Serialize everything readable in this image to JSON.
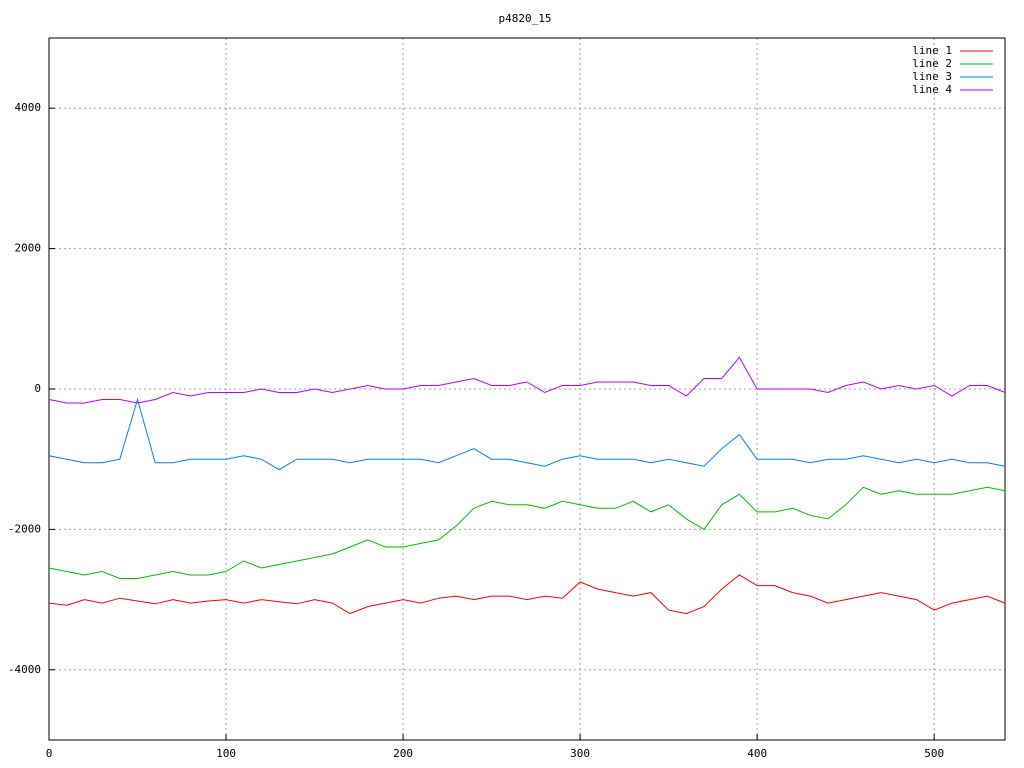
{
  "chart_data": {
    "type": "line",
    "title": "p4820_15",
    "x": [
      0,
      10,
      20,
      30,
      40,
      50,
      60,
      70,
      80,
      90,
      100,
      110,
      120,
      130,
      140,
      150,
      160,
      170,
      180,
      190,
      200,
      210,
      220,
      230,
      240,
      250,
      260,
      270,
      280,
      290,
      300,
      310,
      320,
      330,
      340,
      350,
      360,
      370,
      380,
      390,
      400,
      410,
      420,
      430,
      440,
      450,
      460,
      470,
      480,
      490,
      500,
      510,
      520,
      530,
      540
    ],
    "series": [
      {
        "name": "line 1",
        "color": "#ff0000",
        "values": [
          -3050,
          -3080,
          -3000,
          -3050,
          -2980,
          -3020,
          -3060,
          -3000,
          -3050,
          -3020,
          -3000,
          -3050,
          -3000,
          -3030,
          -3060,
          -3000,
          -3050,
          -3200,
          -3100,
          -3050,
          -3000,
          -3050,
          -2980,
          -2950,
          -3000,
          -2950,
          -2950,
          -3000,
          -2950,
          -2980,
          -2750,
          -2850,
          -2900,
          -2950,
          -2900,
          -3150,
          -3200,
          -3100,
          -2850,
          -2650,
          -2800,
          -2800,
          -2900,
          -2950,
          -3050,
          -3000,
          -2950,
          -2900,
          -2950,
          -3000,
          -3150,
          -3050,
          -3000,
          -2950,
          -3050
        ]
      },
      {
        "name": "line 2",
        "color": "#00c000",
        "values": [
          -2550,
          -2600,
          -2650,
          -2600,
          -2700,
          -2700,
          -2650,
          -2600,
          -2650,
          -2650,
          -2600,
          -2450,
          -2550,
          -2500,
          -2450,
          -2400,
          -2350,
          -2250,
          -2150,
          -2250,
          -2250,
          -2200,
          -2150,
          -1950,
          -1700,
          -1600,
          -1650,
          -1650,
          -1700,
          -1600,
          -1650,
          -1700,
          -1700,
          -1600,
          -1750,
          -1650,
          -1850,
          -2000,
          -1650,
          -1500,
          -1750,
          -1750,
          -1700,
          -1800,
          -1850,
          -1650,
          -1400,
          -1500,
          -1450,
          -1500,
          -1500,
          -1500,
          -1450,
          -1400,
          -1450
        ]
      },
      {
        "name": "line 3",
        "color": "#0080ff",
        "values": [
          -950,
          -1000,
          -1050,
          -1050,
          -1000,
          -150,
          -1050,
          -1050,
          -1000,
          -1000,
          -1000,
          -950,
          -1000,
          -1150,
          -1000,
          -1000,
          -1000,
          -1050,
          -1000,
          -1000,
          -1000,
          -1000,
          -1050,
          -950,
          -850,
          -1000,
          -1000,
          -1050,
          -1100,
          -1000,
          -950,
          -1000,
          -1000,
          -1000,
          -1050,
          -1000,
          -1050,
          -1100,
          -850,
          -650,
          -1000,
          -1000,
          -1000,
          -1050,
          -1000,
          -1000,
          -950,
          -1000,
          -1050,
          -1000,
          -1050,
          -1000,
          -1050,
          -1050,
          -1100
        ]
      },
      {
        "name": "line 4",
        "color": "#c000ff",
        "values": [
          -150,
          -200,
          -200,
          -150,
          -150,
          -200,
          -150,
          -50,
          -100,
          -50,
          -50,
          -50,
          0,
          -50,
          -50,
          0,
          -50,
          0,
          50,
          0,
          0,
          50,
          50,
          100,
          150,
          50,
          50,
          100,
          -50,
          50,
          50,
          100,
          100,
          100,
          50,
          50,
          -100,
          150,
          150,
          450,
          0,
          0,
          0,
          0,
          -50,
          50,
          100,
          0,
          50,
          0,
          50,
          -100,
          50,
          50,
          -50
        ]
      }
    ],
    "xlim": [
      0,
      540
    ],
    "xticks": [
      0,
      100,
      200,
      300,
      400,
      500
    ],
    "ylim": [
      -5000,
      5000
    ],
    "yticks": [
      -4000,
      -2000,
      0,
      2000,
      4000
    ],
    "grid": true,
    "legend": "top-right"
  }
}
